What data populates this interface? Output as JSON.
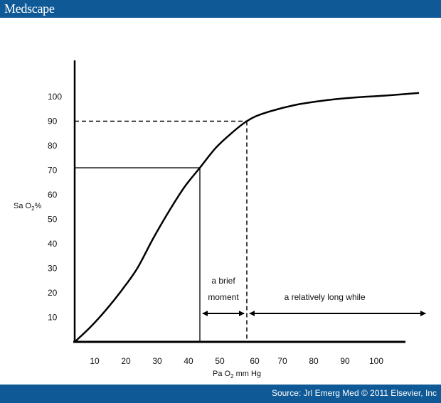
{
  "header": {
    "brand": "Medscape"
  },
  "footer": {
    "source": "Source: Jrl Emerg Med © 2011 Elsevier, Inc"
  },
  "chart_data": {
    "type": "line",
    "xlabel": "Pa O2 mm Hg",
    "ylabel": "Sa O2%",
    "x_ticks": [
      10,
      20,
      30,
      40,
      50,
      60,
      70,
      80,
      90,
      100
    ],
    "y_ticks": [
      10,
      20,
      30,
      40,
      50,
      60,
      70,
      80,
      90,
      100
    ],
    "series": [
      {
        "x": [
          0,
          5,
          10,
          15,
          20,
          25,
          30,
          35,
          40,
          45,
          50,
          55,
          60,
          70,
          80,
          90,
          100,
          110
        ],
        "y": [
          0,
          6,
          13,
          21,
          30,
          42,
          53,
          63,
          71,
          79,
          85,
          90,
          93,
          96.5,
          98.5,
          99.7,
          100.5,
          101.5
        ]
      }
    ],
    "reference_points": [
      {
        "x": 40,
        "y": 71,
        "style": "solid"
      },
      {
        "x": 55,
        "y": 90,
        "style": "dashed"
      }
    ],
    "annotations": [
      {
        "text_lines": [
          "a brief",
          "moment"
        ],
        "x_from": 40,
        "x_to": 55
      },
      {
        "text_lines": [
          "a relatively long while"
        ],
        "x_from": 55,
        "x_to": 113
      }
    ]
  }
}
